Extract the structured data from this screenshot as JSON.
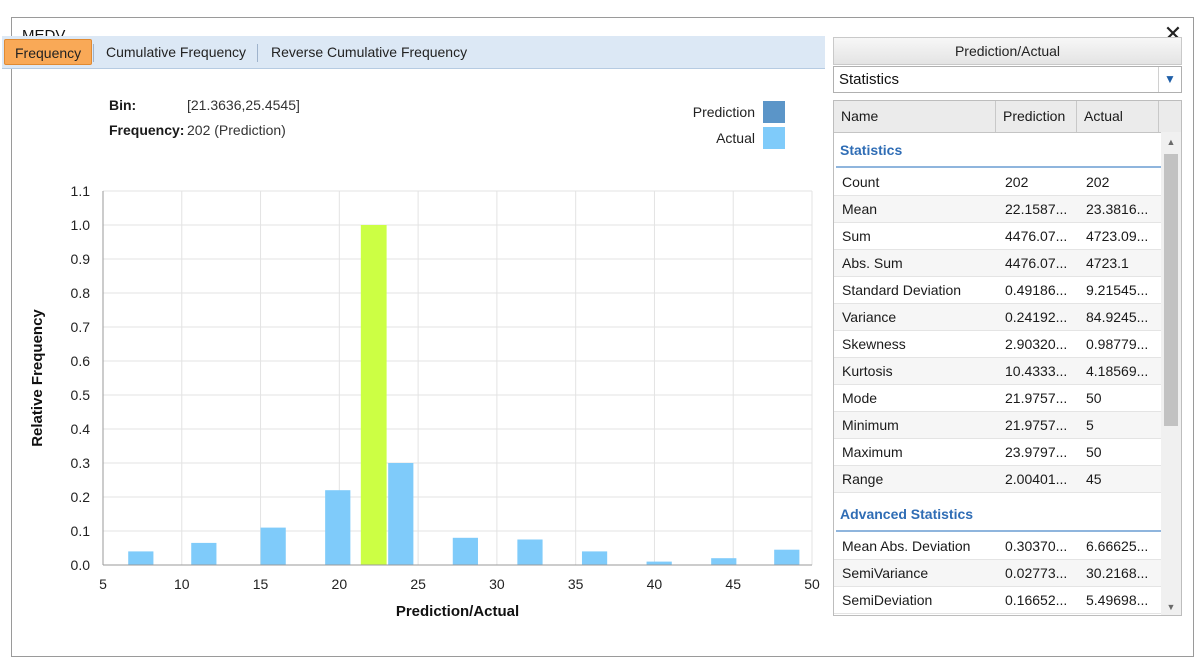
{
  "window": {
    "title": "MEDV",
    "close_label": "✕"
  },
  "tabs": [
    {
      "label": "Frequency",
      "active": true
    },
    {
      "label": "Cumulative Frequency",
      "active": false
    },
    {
      "label": "Reverse Cumulative Frequency",
      "active": false
    }
  ],
  "info": {
    "bin_label": "Bin:",
    "bin_value": "[21.3636,25.4545]",
    "freq_label": "Frequency:",
    "freq_value": "202 (Prediction)"
  },
  "legend": {
    "prediction": {
      "label": "Prediction",
      "color": "#5b95c8"
    },
    "actual": {
      "label": "Actual",
      "color": "#7fcbfa"
    }
  },
  "chart_data": {
    "type": "bar",
    "xlabel": "Prediction/Actual",
    "ylabel": "Relative Frequency",
    "xlim": [
      5,
      50
    ],
    "ylim": [
      0,
      1.1
    ],
    "x_ticks": [
      5,
      10,
      15,
      20,
      25,
      30,
      35,
      40,
      45,
      50
    ],
    "y_ticks": [
      0.0,
      0.1,
      0.2,
      0.3,
      0.4,
      0.5,
      0.6,
      0.7,
      0.8,
      0.9,
      1.0,
      1.1
    ],
    "y_tick_labels": [
      "0.0",
      "0.1",
      "0.2",
      "0.3",
      "0.4",
      "0.5",
      "0.6",
      "0.7",
      "0.8",
      "0.9",
      "1.0",
      "1.1"
    ],
    "grid": true,
    "highlight_color": "#ccff44",
    "series": [
      {
        "name": "Prediction",
        "color": "#5b95c8",
        "bars": [
          {
            "x0": 21.3636,
            "x1": 23.0,
            "value": 1.0,
            "highlight": true
          }
        ]
      },
      {
        "name": "Actual",
        "color": "#7fcbfa",
        "bars": [
          {
            "x0": 6.6,
            "x1": 8.2,
            "value": 0.04
          },
          {
            "x0": 10.6,
            "x1": 12.2,
            "value": 0.065
          },
          {
            "x0": 15.0,
            "x1": 16.6,
            "value": 0.11
          },
          {
            "x0": 19.1,
            "x1": 20.7,
            "value": 0.22
          },
          {
            "x0": 23.1,
            "x1": 24.7,
            "value": 0.3
          },
          {
            "x0": 27.2,
            "x1": 28.8,
            "value": 0.08
          },
          {
            "x0": 31.3,
            "x1": 32.9,
            "value": 0.075
          },
          {
            "x0": 35.4,
            "x1": 37.0,
            "value": 0.04
          },
          {
            "x0": 39.5,
            "x1": 41.1,
            "value": 0.01
          },
          {
            "x0": 43.6,
            "x1": 45.2,
            "value": 0.02
          },
          {
            "x0": 47.6,
            "x1": 49.2,
            "value": 0.045
          }
        ]
      }
    ]
  },
  "panel": {
    "header": "Prediction/Actual",
    "selector_value": "Statistics",
    "selector_arrow": "▼",
    "columns": [
      "Name",
      "Prediction",
      "Actual"
    ],
    "sections": [
      {
        "title": "Statistics",
        "rows": [
          {
            "name": "Count",
            "prediction": "202",
            "actual": "202"
          },
          {
            "name": "Mean",
            "prediction": "22.1587...",
            "actual": "23.3816..."
          },
          {
            "name": "Sum",
            "prediction": "4476.07...",
            "actual": "4723.09..."
          },
          {
            "name": "Abs. Sum",
            "prediction": "4476.07...",
            "actual": "4723.1"
          },
          {
            "name": "Standard Deviation",
            "prediction": "0.49186...",
            "actual": "9.21545..."
          },
          {
            "name": "Variance",
            "prediction": "0.24192...",
            "actual": "84.9245..."
          },
          {
            "name": "Skewness",
            "prediction": "2.90320...",
            "actual": "0.98779..."
          },
          {
            "name": "Kurtosis",
            "prediction": "10.4333...",
            "actual": "4.18569..."
          },
          {
            "name": "Mode",
            "prediction": "21.9757...",
            "actual": "50"
          },
          {
            "name": "Minimum",
            "prediction": "21.9757...",
            "actual": "5"
          },
          {
            "name": "Maximum",
            "prediction": "23.9797...",
            "actual": "50"
          },
          {
            "name": "Range",
            "prediction": "2.00401...",
            "actual": "45"
          }
        ]
      },
      {
        "title": "Advanced Statistics",
        "rows": [
          {
            "name": "Mean Abs. Deviation",
            "prediction": "0.30370...",
            "actual": "6.66625..."
          },
          {
            "name": "SemiVariance",
            "prediction": "0.02773...",
            "actual": "30.2168..."
          },
          {
            "name": "SemiDeviation",
            "prediction": "0.16652...",
            "actual": "5.49698..."
          }
        ]
      }
    ],
    "scroll": {
      "up_arrow": "▲",
      "down_arrow": "▼"
    }
  }
}
